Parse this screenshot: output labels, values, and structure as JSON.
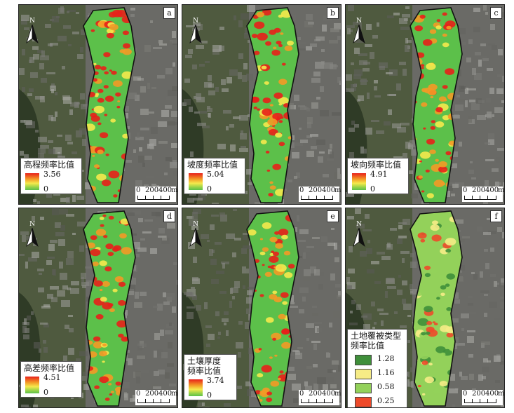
{
  "panels": [
    {
      "tag": "a",
      "legend_title": "高程频率比值",
      "max": "3.56",
      "min": "0"
    },
    {
      "tag": "b",
      "legend_title": "坡度频率比值",
      "max": "5.04",
      "min": "0"
    },
    {
      "tag": "c",
      "legend_title": "坡向频率比值",
      "max": "4.91",
      "min": "0"
    },
    {
      "tag": "d",
      "legend_title": "高差频率比值",
      "max": "4.51",
      "min": "0"
    },
    {
      "tag": "e",
      "legend_title_line1": "土壤厚度",
      "legend_title_line2": "频率比值",
      "max": "3.74",
      "min": "0"
    },
    {
      "tag": "f",
      "legend_title_line1": "土地覆被类型",
      "legend_title_line2": "频率比值",
      "classes": [
        {
          "value": "1.28",
          "color": "#3f8f3a"
        },
        {
          "value": "1.16",
          "color": "#f6ec86"
        },
        {
          "value": "0.58",
          "color": "#93d15a"
        },
        {
          "value": "0.25",
          "color": "#ee4a2a"
        }
      ]
    }
  ],
  "north_label": "N",
  "scale": {
    "zero": "0",
    "mid": "200",
    "max": "400",
    "unit": "m"
  },
  "colors": {
    "high": "#e8201a",
    "mid": "#f5e94c",
    "low": "#5cc04a",
    "boundary": "#111111"
  }
}
